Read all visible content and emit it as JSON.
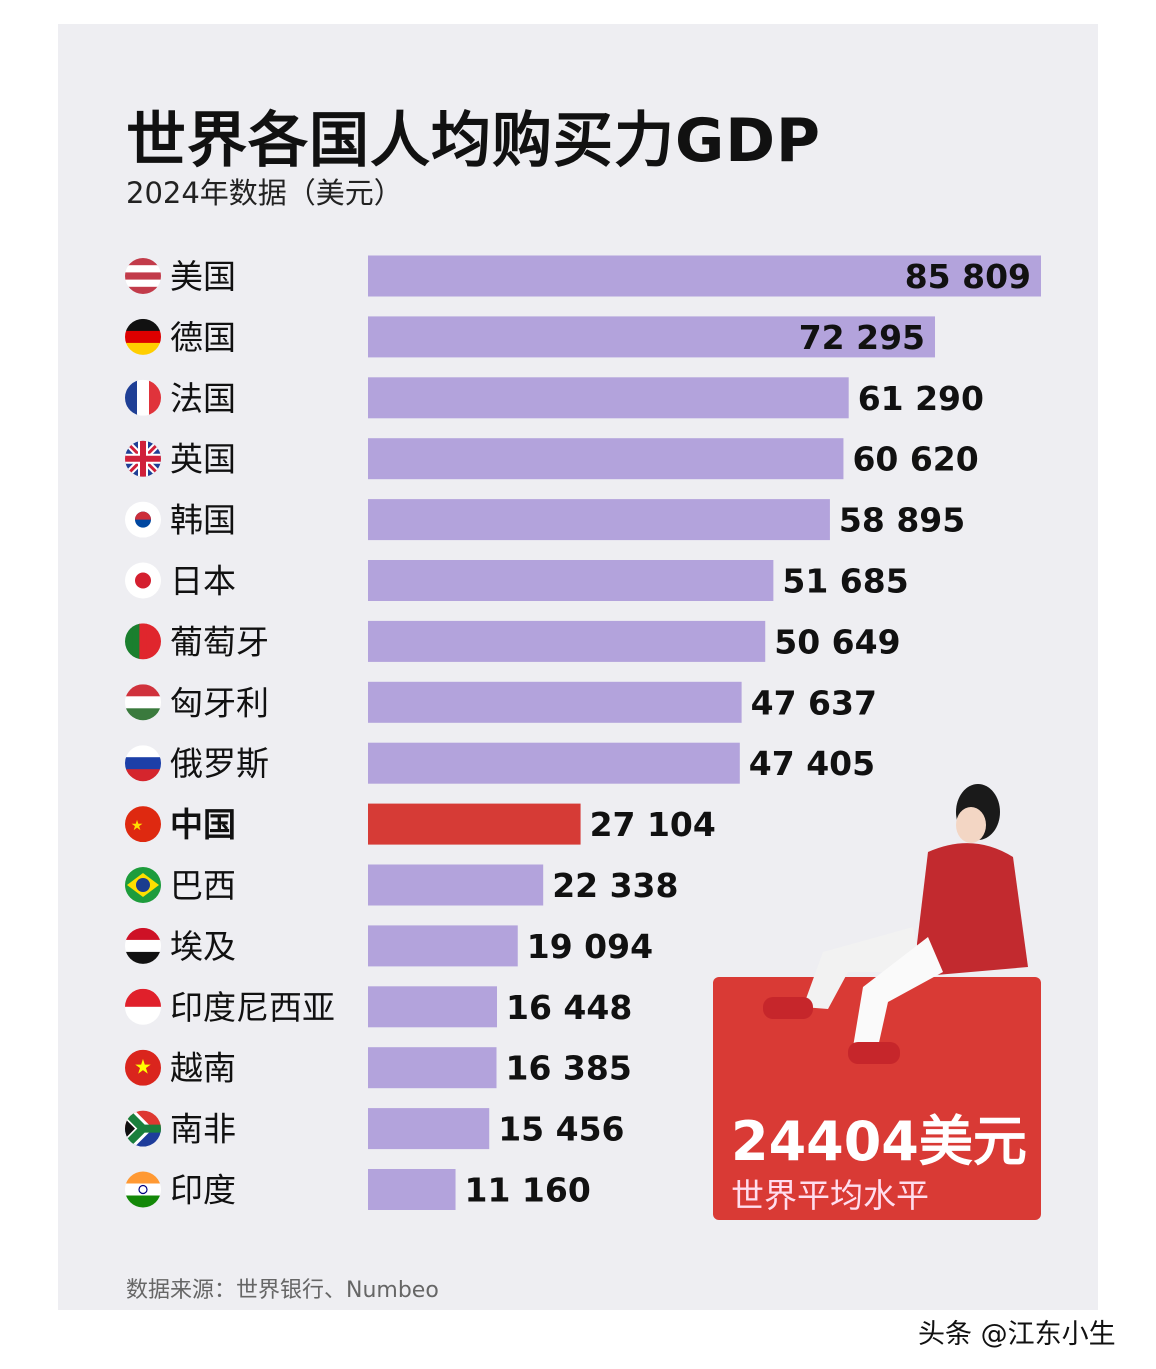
{
  "chart_data": {
    "type": "bar",
    "orientation": "horizontal",
    "title": "世界各国人均购买力GDP",
    "subtitle": "2024年数据（美元）",
    "categories": [
      "美国",
      "德国",
      "法国",
      "英国",
      "韩国",
      "日本",
      "葡萄牙",
      "匈牙利",
      "俄罗斯",
      "中国",
      "巴西",
      "埃及",
      "印度尼西亚",
      "越南",
      "南非",
      "印度"
    ],
    "values": [
      85809,
      72295,
      61290,
      60620,
      58895,
      51685,
      50649,
      47637,
      47405,
      27104,
      22338,
      19094,
      16448,
      16385,
      15456,
      11160
    ],
    "value_labels": [
      "85 809",
      "72 295",
      "61 290",
      "60 620",
      "58 895",
      "51 685",
      "50 649",
      "47 637",
      "47 405",
      "27 104",
      "22 338",
      "19 094",
      "16 448",
      "16 385",
      "15 456",
      "11 160"
    ],
    "highlight": "中国",
    "bar_color": "#b3a3dc",
    "highlight_color": "#d63b36",
    "xlim": [
      0,
      85809
    ],
    "grid": false,
    "flags": [
      [
        "h",
        "#c23b4a",
        "#ffffff",
        "#c23b4a",
        "#ffffff",
        "#c23b4a"
      ],
      [
        "h",
        "#111111",
        "#dd0000",
        "#ffce00"
      ],
      [
        "v",
        "#1f3f95",
        "#ffffff",
        "#e0333b"
      ],
      [
        "uk",
        "#1f3f95",
        "#ffffff",
        "#d0203a"
      ],
      [
        "kr",
        "#ffffff",
        "#cd2e3a",
        "#0047a0"
      ],
      [
        "jp",
        "#ffffff",
        "#d41f2f"
      ],
      [
        "v",
        "#1a7f2e",
        "#1a7f2e",
        "#e0262d",
        "#e0262d",
        "#e0262d"
      ],
      [
        "h",
        "#d0323c",
        "#ffffff",
        "#3a7a3d"
      ],
      [
        "h",
        "#ffffff",
        "#1c3fa8",
        "#d5252d"
      ],
      [
        "cn",
        "#de2910",
        "#ffde00"
      ],
      [
        "br",
        "#1d9c3c",
        "#fedf00",
        "#1b3d8f"
      ],
      [
        "h",
        "#ce1126",
        "#ffffff",
        "#111111"
      ],
      [
        "h",
        "#e0202b",
        "#ffffff"
      ],
      [
        "cn",
        "#da251d",
        "#ffff00"
      ],
      [
        "za",
        "#1a7f3c",
        "#ffb612",
        "#111111",
        "#de3831",
        "#1d3c9b"
      ],
      [
        "in",
        "#ff9933",
        "#ffffff",
        "#138808"
      ]
    ]
  },
  "callout": {
    "value": "24404美元",
    "label": "世界平均水平"
  },
  "source": "数据来源：世界银行、Numbeo",
  "watermark": "头条 @江东小生"
}
